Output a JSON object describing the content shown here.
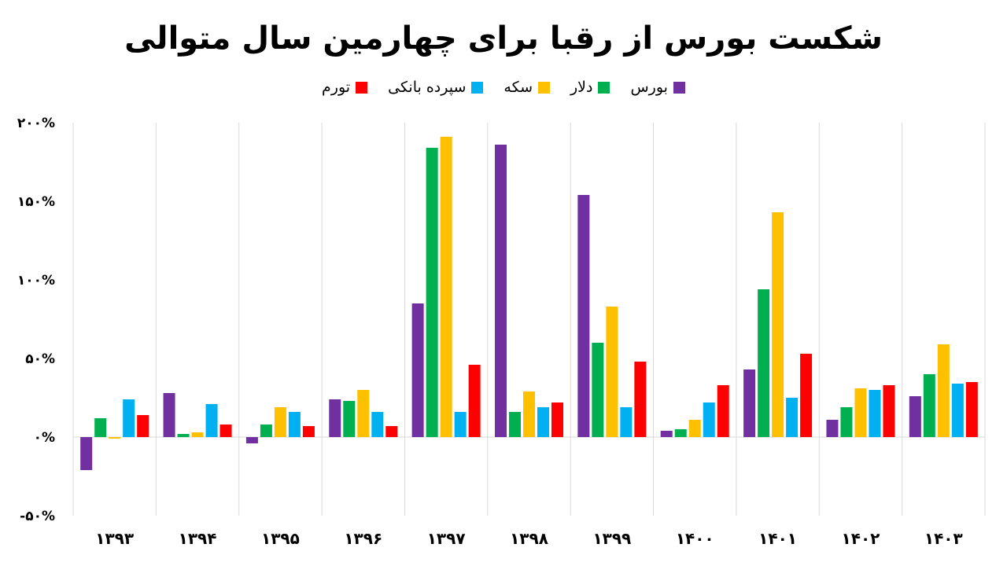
{
  "chart_data": {
    "type": "bar",
    "title": "شکست بورس از رقبا برای چهارمین سال متوالی",
    "xlabel": "",
    "ylabel": "",
    "categories": [
      "۱۳۹۳",
      "۱۳۹۴",
      "۱۳۹۵",
      "۱۳۹۶",
      "۱۳۹۷",
      "۱۳۹۸",
      "۱۳۹۹",
      "۱۴۰۰",
      "۱۴۰۱",
      "۱۴۰۲",
      "۱۴۰۳"
    ],
    "ylim": [
      -50,
      200
    ],
    "yticks": [
      -50,
      0,
      50,
      100,
      150,
      200
    ],
    "ytick_labels": [
      "-۵۰%",
      "۰%",
      "۵۰%",
      "۱۰۰%",
      "۱۵۰%",
      "۲۰۰%"
    ],
    "grid": "vertical",
    "legend_position": "top-center",
    "series": [
      {
        "name": "بورس",
        "color": "#7030a0",
        "values": [
          -21,
          28,
          -4,
          24,
          85,
          186,
          154,
          4,
          43,
          11,
          26
        ]
      },
      {
        "name": "دلار",
        "color": "#00b050",
        "values": [
          12,
          2,
          8,
          23,
          184,
          16,
          60,
          5,
          94,
          19,
          40
        ]
      },
      {
        "name": "سکه",
        "color": "#ffc000",
        "values": [
          -1,
          3,
          19,
          30,
          191,
          29,
          83,
          11,
          143,
          31,
          59
        ]
      },
      {
        "name": "سپرده بانکی",
        "color": "#00b0f0",
        "values": [
          24,
          21,
          16,
          16,
          16,
          19,
          19,
          22,
          25,
          30,
          34
        ]
      },
      {
        "name": "تورم",
        "color": "#ff0000",
        "values": [
          14,
          8,
          7,
          7,
          46,
          22,
          48,
          33,
          53,
          33,
          35
        ]
      }
    ]
  }
}
